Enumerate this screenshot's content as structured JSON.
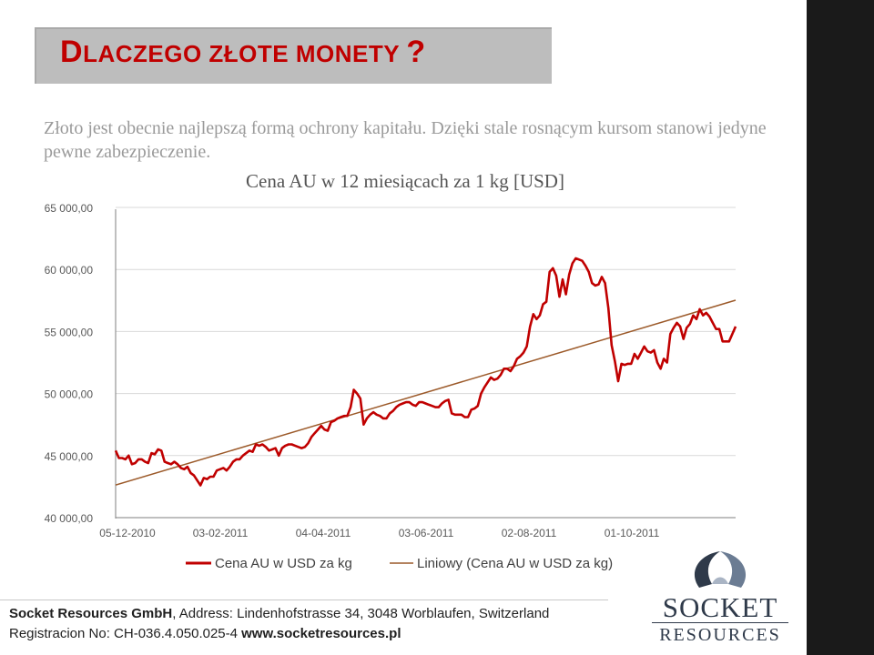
{
  "slide": {
    "title_cap1": "D",
    "title_rest1": "LACZEGO ZŁOTE MONETY ",
    "title_mark": "?",
    "intro": "Złoto jest obecnie najlepszą formą ochrony kapitału. Dzięki stale rosnącym kursom stanowi jedyne pewne zabezpieczenie.",
    "side_brand": "Socket Resources",
    "footer_company": "Socket Resources GmbH",
    "footer_address": ", Address: Lindenhofstrasse 34, 3048 Worblaufen, Switzerland",
    "footer_reg": "Registracion No: CH-036.4.050.025-4 ",
    "footer_web": "www.socketresources.pl",
    "logo_word1": "SOCKET",
    "logo_word2": "RESOURCES",
    "colors": {
      "accent": "#c00000",
      "sidebar": "#1a1a1a",
      "trend": "#9c5a2a",
      "series": "#c00000"
    }
  },
  "chart_data": {
    "type": "line",
    "title": "Cena AU w 12 miesiącach za 1 kg [USD]",
    "ylim": [
      40000,
      65000
    ],
    "yticks": [
      "40 000,00",
      "45 000,00",
      "50 000,00",
      "55 000,00",
      "60 000,00",
      "65 000,00"
    ],
    "yticks_values": [
      40000,
      45000,
      50000,
      55000,
      60000,
      65000
    ],
    "xtick_labels": [
      "05-12-2010",
      "03-02-2011",
      "04-04-2011",
      "03-06-2011",
      "02-08-2011",
      "01-10-2011"
    ],
    "legend_position": "bottom",
    "series": [
      {
        "name": "Cena AU w USD za kg",
        "values": [
          45400,
          44800,
          44800,
          44700,
          45000,
          44300,
          44400,
          44700,
          44700,
          44500,
          44400,
          45200,
          45100,
          45500,
          45400,
          44500,
          44400,
          44300,
          44500,
          44300,
          44000,
          43900,
          44100,
          43600,
          43400,
          43000,
          42600,
          43200,
          43100,
          43300,
          43300,
          43800,
          43900,
          44000,
          43800,
          44100,
          44500,
          44700,
          44700,
          45000,
          45200,
          45400,
          45300,
          45900,
          45800,
          45900,
          45700,
          45400,
          45500,
          45600,
          45000,
          45600,
          45800,
          45900,
          45900,
          45800,
          45700,
          45600,
          45700,
          46000,
          46500,
          46800,
          47100,
          47400,
          47100,
          47000,
          47700,
          47800,
          48000,
          48100,
          48200,
          48200,
          48900,
          50300,
          50000,
          49600,
          47500,
          48000,
          48300,
          48500,
          48300,
          48200,
          48000,
          48000,
          48400,
          48600,
          48900,
          49100,
          49200,
          49300,
          49300,
          49100,
          49000,
          49300,
          49300,
          49200,
          49100,
          49000,
          48900,
          48900,
          49200,
          49400,
          49500,
          48400,
          48300,
          48300,
          48300,
          48100,
          48100,
          48700,
          48800,
          49000,
          50000,
          50500,
          50900,
          51300,
          51100,
          51200,
          51500,
          52000,
          52000,
          51800,
          52200,
          52800,
          53000,
          53300,
          53800,
          55400,
          56400,
          56000,
          56300,
          57200,
          57400,
          59800,
          60100,
          59500,
          57800,
          59200,
          58000,
          59600,
          60500,
          60900,
          60800,
          60700,
          60300,
          59800,
          58900,
          58700,
          58800,
          59400,
          58900,
          56900,
          53900,
          52600,
          51000,
          52400,
          52300,
          52400,
          52400,
          53200,
          52800,
          53300,
          53800,
          53400,
          53300,
          53500,
          52500,
          52000,
          52800,
          52500,
          54800,
          55300,
          55700,
          55400,
          54400,
          55300,
          55600,
          56300,
          56000,
          56800,
          56300,
          56500,
          56200,
          55700,
          55200,
          55200,
          54200,
          54200,
          54200,
          54800,
          55400
        ]
      },
      {
        "name": "Liniowy (Cena AU w USD za kg)",
        "trend": true
      }
    ]
  }
}
